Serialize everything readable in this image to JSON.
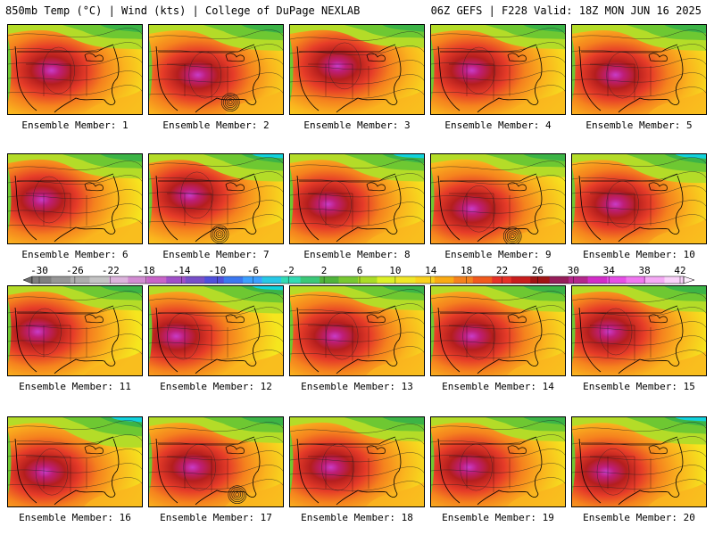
{
  "header": {
    "left": "850mb Temp (°C) | Wind (kts) | College of DuPage NEXLAB",
    "right": "06Z GEFS | F228 Valid: 18Z MON JUN 16 2025"
  },
  "members": [
    {
      "label": "Ensemble Member: 1",
      "hot_x": 0.32,
      "hot_y": 0.5,
      "cold": 0.3,
      "low": null
    },
    {
      "label": "Ensemble Member: 2",
      "hot_x": 0.36,
      "hot_y": 0.55,
      "cold": 0.35,
      "low": [
        0.6,
        0.85
      ]
    },
    {
      "label": "Ensemble Member: 3",
      "hot_x": 0.35,
      "hot_y": 0.45,
      "cold": 0.25,
      "low": null
    },
    {
      "label": "Ensemble Member: 4",
      "hot_x": 0.3,
      "hot_y": 0.5,
      "cold": 0.3,
      "low": null
    },
    {
      "label": "Ensemble Member: 5",
      "hot_x": 0.32,
      "hot_y": 0.55,
      "cold": 0.35,
      "low": null
    },
    {
      "label": "Ensemble Member: 6",
      "hot_x": 0.25,
      "hot_y": 0.5,
      "cold": 0.3,
      "low": null
    },
    {
      "label": "Ensemble Member: 7",
      "hot_x": 0.3,
      "hot_y": 0.45,
      "cold": 0.4,
      "low": [
        0.52,
        0.88
      ]
    },
    {
      "label": "Ensemble Member: 8",
      "hot_x": 0.28,
      "hot_y": 0.55,
      "cold": 0.4,
      "low": null
    },
    {
      "label": "Ensemble Member: 9",
      "hot_x": 0.3,
      "hot_y": 0.6,
      "cold": 0.25,
      "low": [
        0.6,
        0.9
      ]
    },
    {
      "label": "Ensemble Member: 10",
      "hot_x": 0.32,
      "hot_y": 0.55,
      "cold": 0.45,
      "low": null
    },
    {
      "label": "Ensemble Member: 11",
      "hot_x": 0.22,
      "hot_y": 0.5,
      "cold": 0.3,
      "low": null
    },
    {
      "label": "Ensemble Member: 12",
      "hot_x": 0.2,
      "hot_y": 0.55,
      "cold": 0.4,
      "low": null
    },
    {
      "label": "Ensemble Member: 13",
      "hot_x": 0.33,
      "hot_y": 0.55,
      "cold": 0.3,
      "low": null
    },
    {
      "label": "Ensemble Member: 14",
      "hot_x": 0.3,
      "hot_y": 0.55,
      "cold": 0.35,
      "low": null
    },
    {
      "label": "Ensemble Member: 15",
      "hot_x": 0.27,
      "hot_y": 0.5,
      "cold": 0.35,
      "low": null
    },
    {
      "label": "Ensemble Member: 16",
      "hot_x": 0.27,
      "hot_y": 0.6,
      "cold": 0.5,
      "low": null
    },
    {
      "label": "Ensemble Member: 17",
      "hot_x": 0.32,
      "hot_y": 0.55,
      "cold": 0.35,
      "low": [
        0.65,
        0.85
      ]
    },
    {
      "label": "Ensemble Member: 18",
      "hot_x": 0.3,
      "hot_y": 0.55,
      "cold": 0.3,
      "low": null
    },
    {
      "label": "Ensemble Member: 19",
      "hot_x": 0.28,
      "hot_y": 0.55,
      "cold": 0.3,
      "low": null
    },
    {
      "label": "Ensemble Member: 20",
      "hot_x": 0.25,
      "hot_y": 0.6,
      "cold": 0.4,
      "low": null
    }
  ],
  "colorbar": {
    "tick_labels": [
      "-30",
      "-26",
      "-22",
      "-18",
      "-14",
      "-10",
      "-6",
      "-2",
      "2",
      "6",
      "10",
      "14",
      "18",
      "22",
      "26",
      "30",
      "34",
      "38",
      "42"
    ],
    "colors": [
      "#7f7f7f",
      "#969696",
      "#adadad",
      "#c4c4c4",
      "#dcb4dc",
      "#d28cd2",
      "#c864c8",
      "#a050c8",
      "#7850c8",
      "#5050dc",
      "#3c78f0",
      "#3ca0ff",
      "#28c8e6",
      "#32dcb4",
      "#3cc878",
      "#50b43c",
      "#78c832",
      "#aadc28",
      "#dcf028",
      "#f0e628",
      "#fad21e",
      "#faaa14",
      "#f5821e",
      "#f05a1e",
      "#e63228",
      "#c81e1e",
      "#a01414",
      "#961e5a",
      "#b4288c",
      "#d22dc8",
      "#e650e6",
      "#f078f0",
      "#f5aaf5",
      "#fad2fa"
    ]
  },
  "palette": {
    "cold_1": "#12d2dc",
    "cold_2": "#3cb446",
    "green": "#6ec832",
    "ygreen": "#b4dc28",
    "yellow": "#f5e61e",
    "orange": "#fab41e",
    "dorange": "#f5821e",
    "red": "#e63c28",
    "dred": "#b41e1e",
    "mag": "#be1e78",
    "purple": "#c83cc8"
  }
}
